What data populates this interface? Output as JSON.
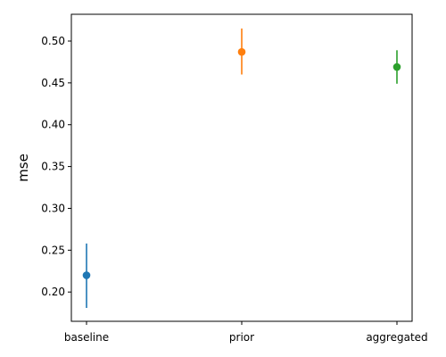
{
  "chart_data": {
    "type": "scatter",
    "title": "",
    "xlabel": "",
    "ylabel": "mse",
    "categories": [
      "baseline",
      "prior",
      "aggregated"
    ],
    "series": [
      {
        "category": "baseline",
        "value": 0.22,
        "err_low": 0.181,
        "err_high": 0.258,
        "color": "#1f77b4"
      },
      {
        "category": "prior",
        "value": 0.487,
        "err_low": 0.46,
        "err_high": 0.515,
        "color": "#ff7f0e"
      },
      {
        "category": "aggregated",
        "value": 0.469,
        "err_low": 0.449,
        "err_high": 0.489,
        "color": "#2ca02c"
      }
    ],
    "ylim": [
      0.165,
      0.532
    ],
    "yticks": [
      0.2,
      0.25,
      0.3,
      0.35,
      0.4,
      0.45,
      0.5
    ],
    "ytick_labels": [
      "0.20",
      "0.25",
      "0.30",
      "0.35",
      "0.40",
      "0.45",
      "0.50"
    ],
    "grid": false,
    "legend": "none"
  }
}
